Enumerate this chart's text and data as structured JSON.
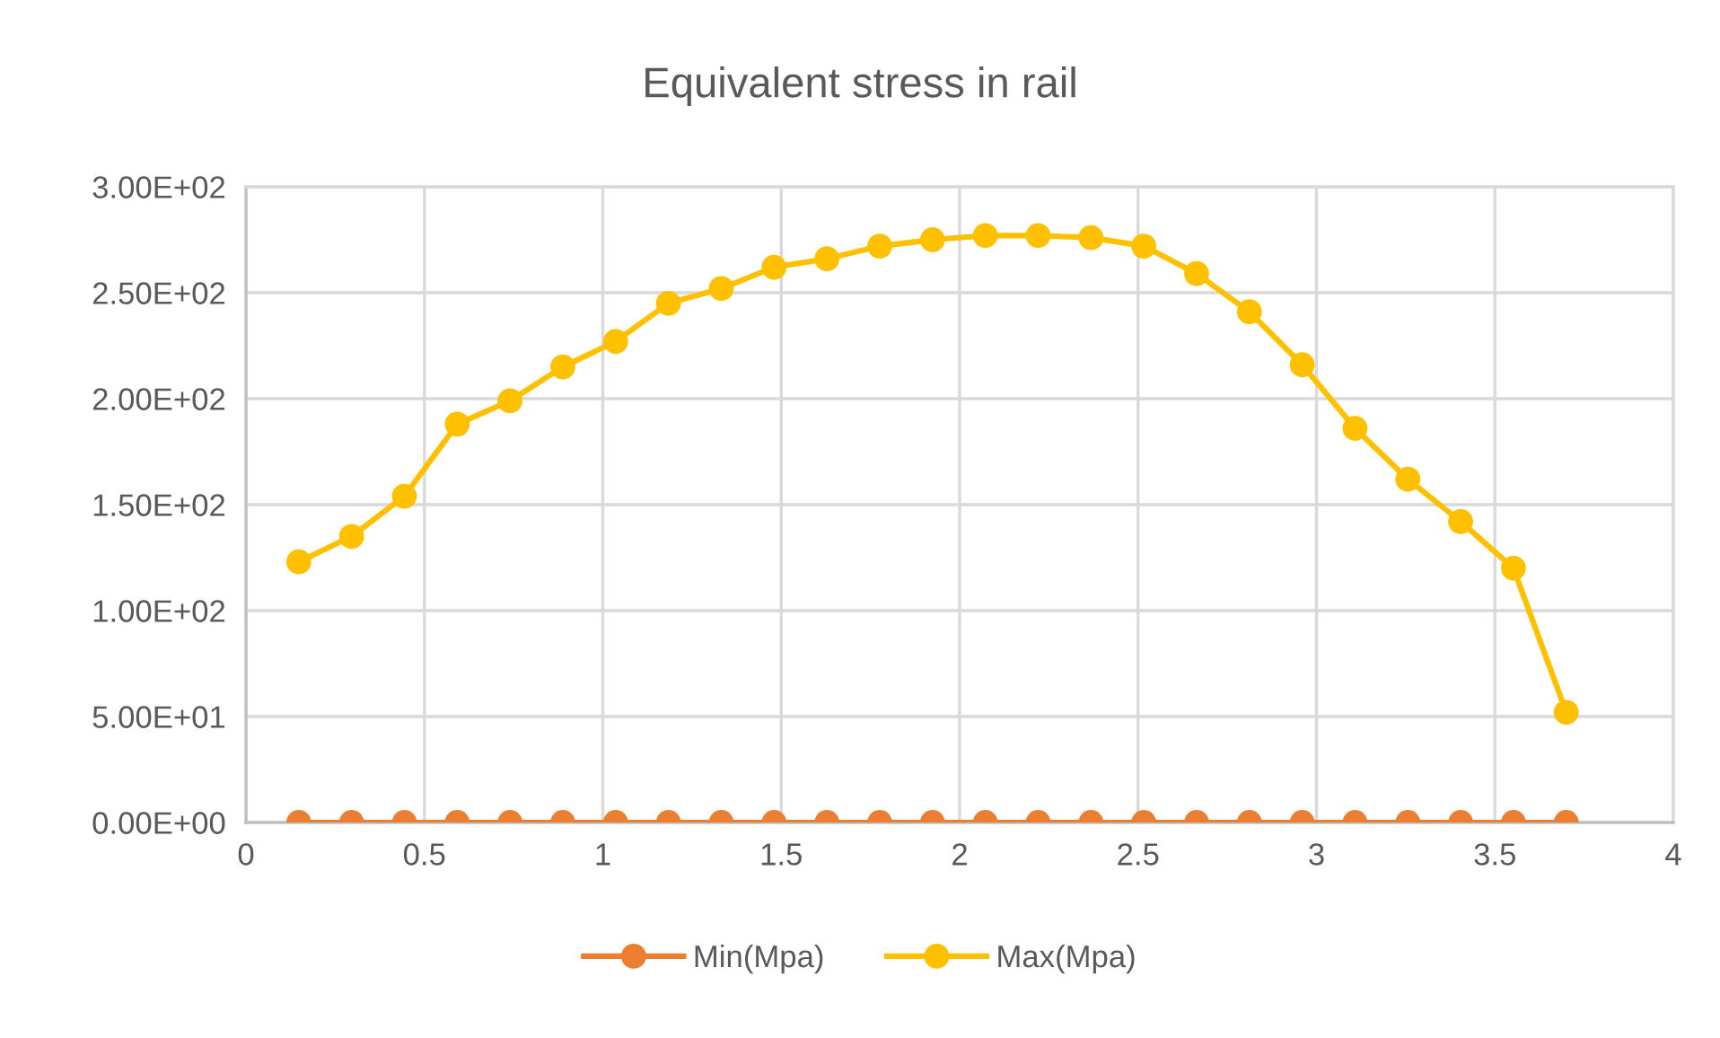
{
  "chart_data": {
    "type": "line",
    "title": "Equivalent stress in rail",
    "x": [
      0.148,
      0.296,
      0.444,
      0.592,
      0.74,
      0.888,
      1.036,
      1.184,
      1.332,
      1.48,
      1.628,
      1.776,
      1.924,
      2.072,
      2.22,
      2.368,
      2.516,
      2.664,
      2.812,
      2.96,
      3.108,
      3.256,
      3.404,
      3.552,
      3.7
    ],
    "series": [
      {
        "name": "Min(Mpa)",
        "color": "#ed7d31",
        "values": [
          0,
          0,
          0,
          0,
          0,
          0,
          0,
          0,
          0,
          0,
          0,
          0,
          0,
          0,
          0,
          0,
          0,
          0,
          0,
          0,
          0,
          0,
          0,
          0,
          0
        ]
      },
      {
        "name": "Max(Mpa)",
        "color": "#ffc000",
        "values": [
          123,
          135,
          154,
          188,
          199,
          215,
          227,
          245,
          252,
          262,
          266,
          272,
          275,
          277,
          277,
          276,
          272,
          259,
          241,
          216,
          186,
          162,
          142,
          120,
          52
        ]
      }
    ],
    "xlim": [
      0,
      4
    ],
    "xticks": [
      0,
      0.5,
      1,
      1.5,
      2,
      2.5,
      3,
      3.5,
      4
    ],
    "ylim": [
      0,
      300
    ],
    "yticks": [
      {
        "value": 0,
        "label": "0.00E+00"
      },
      {
        "value": 50,
        "label": "5.00E+01"
      },
      {
        "value": 100,
        "label": "1.00E+02"
      },
      {
        "value": 150,
        "label": "1.50E+02"
      },
      {
        "value": 200,
        "label": "2.00E+02"
      },
      {
        "value": 250,
        "label": "2.50E+02"
      },
      {
        "value": 300,
        "label": "3.00E+02"
      }
    ],
    "grid": true,
    "legend": "bottom",
    "marker": "circle",
    "line_style": "solid"
  }
}
